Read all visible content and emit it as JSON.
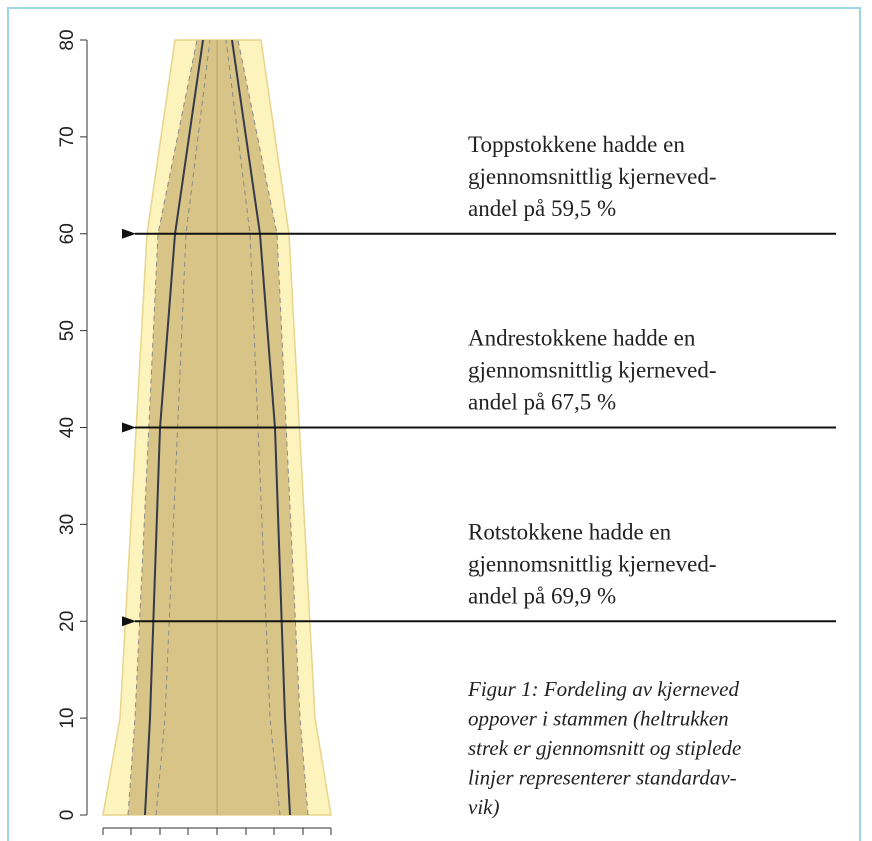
{
  "chart_data": {
    "type": "stem-profile",
    "ylim": [
      0,
      80
    ],
    "yticks": [
      0,
      10,
      20,
      30,
      40,
      50,
      60,
      70,
      80
    ],
    "annotations": [
      {
        "lines": [
          "Toppstokkene hadde en",
          "gjennomsnittlig kjerneved-",
          "andel på 59,5 %"
        ],
        "height": 60
      },
      {
        "lines": [
          "Andrestokkene hadde en",
          "gjennomsnittlig kjerneved-",
          "andel på 67,5 %"
        ],
        "height": 40
      },
      {
        "lines": [
          "Rotstokkene hadde en",
          "gjennomsnittlig kjerneved-",
          "andel på 69,9 %"
        ],
        "height": 20
      }
    ],
    "caption": [
      "Figur 1: Fordeling av kjerneved",
      "oppover i stammen (heltrukken",
      "strek er gjennomsnitt og stiplede",
      "linjer representerer standardav-",
      "vik)"
    ]
  }
}
